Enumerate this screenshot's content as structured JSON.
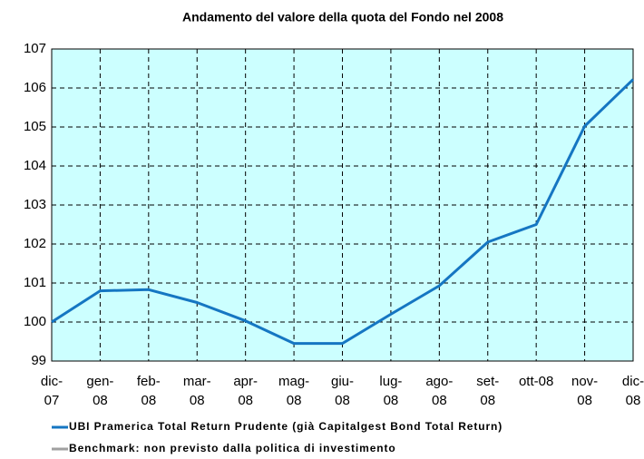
{
  "chart_data": {
    "type": "line",
    "title": "Andamento del valore della quota del Fondo nel 2008",
    "categories": [
      "dic-07",
      "gen-08",
      "feb-08",
      "mar-08",
      "apr-08",
      "mag-08",
      "giu-08",
      "lug-08",
      "ago-08",
      "set-08",
      "ott-08",
      "nov-08",
      "dic-08"
    ],
    "series": [
      {
        "name": "UBI Pramerica Total Return Prudente (già Capitalgest Bond Total Return)",
        "color": "#1576c2",
        "values": [
          100,
          100.8,
          100.83,
          100.5,
          100.03,
          99.45,
          99.45,
          100.2,
          100.93,
          102.05,
          102.5,
          105.02,
          106.22
        ]
      },
      {
        "name": "Benchmark: non previsto dalla politica di investimento",
        "color": "#a0a0a0",
        "values": [
          null,
          null,
          null,
          null,
          null,
          null,
          null,
          null,
          null,
          null,
          null,
          null,
          null
        ]
      }
    ],
    "ylim": [
      99,
      107
    ],
    "yticks": [
      99,
      100,
      101,
      102,
      103,
      104,
      105,
      106,
      107
    ],
    "grid": true,
    "background": "#ccffff"
  }
}
